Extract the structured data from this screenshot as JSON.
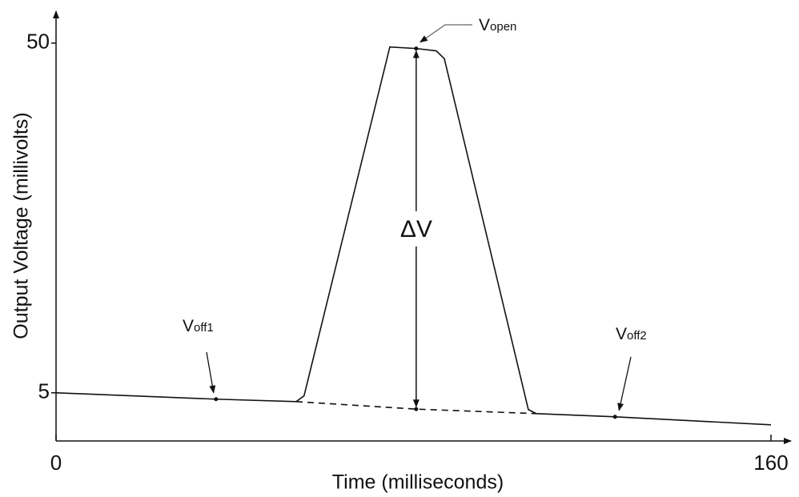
{
  "chart_data": {
    "type": "line",
    "xlabel": "Time (milliseconds)",
    "ylabel": "Output Voltage (millivolts)",
    "xlim": [
      0,
      160
    ],
    "ylim": [
      -1.2,
      54
    ],
    "xticks": [
      0,
      160
    ],
    "yticks": [
      5,
      50
    ],
    "color": "#111111",
    "series": [
      {
        "x": [
          0,
          35.8,
          53.75,
          55.5,
          74.7,
          80.6,
          85.1,
          86.9,
          105.7,
          107.5,
          125.1,
          160
        ],
        "values": [
          5,
          4.18,
          3.87,
          4.6,
          49.5,
          49.3,
          49.0,
          48.0,
          2.84,
          2.32,
          1.91,
          0.88
        ],
        "style": "solid"
      },
      {
        "x": [
          53.75,
          80.6,
          107.5
        ],
        "values": [
          3.87,
          2.9,
          2.32
        ],
        "style": "dashed"
      }
    ],
    "annotations": [
      {
        "text": "V",
        "sub": "off1",
        "point": [
          35.8,
          4.18
        ]
      },
      {
        "text": "V",
        "sub": "open",
        "point": [
          80.6,
          49.3
        ]
      },
      {
        "text": "V",
        "sub": "off2",
        "point": [
          125.1,
          1.91
        ]
      },
      {
        "text": "ΔV",
        "x": 80.6,
        "from": 2.9,
        "to": 49.3
      }
    ]
  }
}
